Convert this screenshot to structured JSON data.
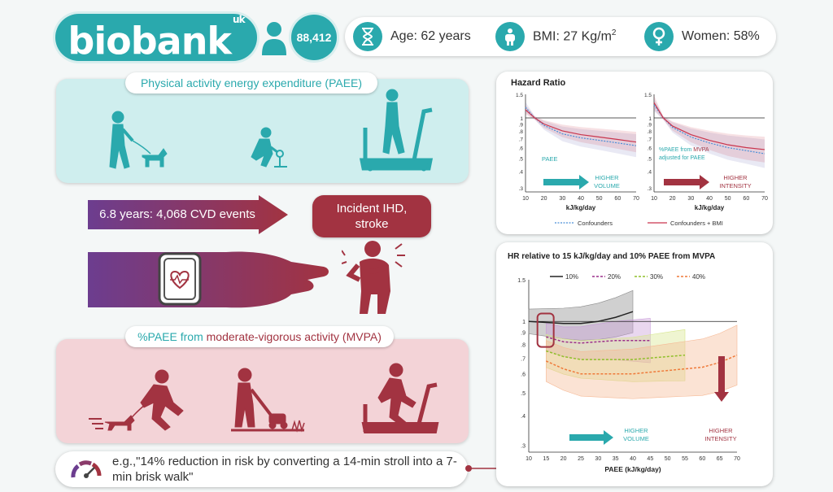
{
  "header": {
    "logo_text": "biobank",
    "logo_suffix": "uk",
    "participants": "88,412",
    "age": "Age: 62 years",
    "bmi": "BMI: 27 Kg/m",
    "bmi_sup": "2",
    "women": "Women: 58%"
  },
  "paee_panel": {
    "title": "Physical activity energy expenditure (PAEE)"
  },
  "followup": {
    "arrow_text": "6.8 years: 4,068 CVD events",
    "outcome": "Incident IHD, stroke"
  },
  "mvpa_panel": {
    "title_part1": "%PAEE from ",
    "title_part2": "moderate-vigorous activity (MVPA)"
  },
  "example": {
    "text": "e.g.,\"14% reduction in risk by converting a 14-min stroll into a 7-min brisk walk\""
  },
  "colors": {
    "teal": "#2aa9ad",
    "maroon": "#a23341",
    "purple": "#6c3d8f",
    "pink_panel": "#f3d3d7",
    "teal_panel": "#cfeeee"
  },
  "chart_data": [
    {
      "type": "line",
      "title": "Hazard Ratio",
      "panel_label": "PAEE",
      "xlabel": "kJ/kg/day",
      "xticks": [
        10,
        20,
        30,
        40,
        50,
        60,
        70
      ],
      "yticks": [
        "1.5",
        "1",
        ".9",
        ".8",
        ".7",
        ".6",
        ".5",
        ".4",
        ".3"
      ],
      "ylim": [
        0.28,
        1.5
      ],
      "x": [
        10,
        15,
        20,
        30,
        40,
        50,
        60,
        70
      ],
      "series": [
        {
          "name": "Confounders",
          "values": [
            1.2,
            1.0,
            0.88,
            0.76,
            0.71,
            0.68,
            0.65,
            0.62
          ]
        },
        {
          "name": "Confounders + BMI",
          "values": [
            1.15,
            1.0,
            0.9,
            0.8,
            0.75,
            0.72,
            0.69,
            0.66
          ]
        }
      ],
      "annotation": "HIGHER VOLUME"
    },
    {
      "type": "line",
      "panel_label": "%PAEE from MVPA adjusted for PAEE",
      "panel_label_parts": [
        "%PAEE from ",
        "MVPA",
        "adjusted for PAEE"
      ],
      "xlabel": "kJ/kg/day",
      "xticks": [
        10,
        20,
        30,
        40,
        50,
        60,
        70
      ],
      "yticks": [
        "1.5",
        "1",
        ".9",
        ".8",
        ".7",
        ".6",
        ".5",
        ".4",
        ".3"
      ],
      "ylim": [
        0.28,
        1.5
      ],
      "x": [
        10,
        15,
        20,
        30,
        40,
        50,
        60,
        70
      ],
      "series": [
        {
          "name": "Confounders",
          "values": [
            1.25,
            1.0,
            0.85,
            0.72,
            0.65,
            0.6,
            0.57,
            0.54
          ]
        },
        {
          "name": "Confounders + BMI",
          "values": [
            1.3,
            1.0,
            0.87,
            0.75,
            0.68,
            0.63,
            0.6,
            0.58
          ]
        }
      ],
      "annotation": "HIGHER INTENSITY",
      "legend": [
        "Confounders",
        "Confounders + BMI"
      ]
    },
    {
      "type": "line",
      "title": "HR relative to 15 kJ/kg/day and 10% PAEE from MVPA",
      "xlabel": "PAEE (kJ/kg/day)",
      "xticks": [
        10,
        15,
        20,
        25,
        30,
        35,
        40,
        45,
        50,
        55,
        60,
        65,
        70
      ],
      "yticks": [
        "1.5",
        "1",
        ".9",
        ".8",
        ".7",
        ".6",
        ".5",
        ".4",
        ".3"
      ],
      "ylim": [
        0.28,
        1.5
      ],
      "series": [
        {
          "name": "10%",
          "x": [
            10,
            15,
            20,
            25,
            30,
            35,
            40
          ],
          "values": [
            1.0,
            0.99,
            0.98,
            0.98,
            1.0,
            1.04,
            1.1
          ]
        },
        {
          "name": "20%",
          "x": [
            15,
            20,
            25,
            30,
            35,
            40,
            45
          ],
          "values": [
            0.86,
            0.82,
            0.81,
            0.82,
            0.83,
            0.83,
            0.83
          ]
        },
        {
          "name": "30%",
          "x": [
            15,
            20,
            25,
            30,
            35,
            40,
            45,
            50,
            55
          ],
          "values": [
            0.75,
            0.71,
            0.69,
            0.69,
            0.69,
            0.69,
            0.7,
            0.71,
            0.72
          ]
        },
        {
          "name": "40%",
          "x": [
            15,
            20,
            25,
            30,
            35,
            40,
            45,
            50,
            55,
            60,
            65,
            70
          ],
          "values": [
            0.68,
            0.63,
            0.6,
            0.6,
            0.6,
            0.6,
            0.61,
            0.62,
            0.63,
            0.64,
            0.67,
            0.72
          ]
        }
      ],
      "annotations": [
        "HIGHER VOLUME",
        "HIGHER INTENSITY"
      ]
    }
  ]
}
